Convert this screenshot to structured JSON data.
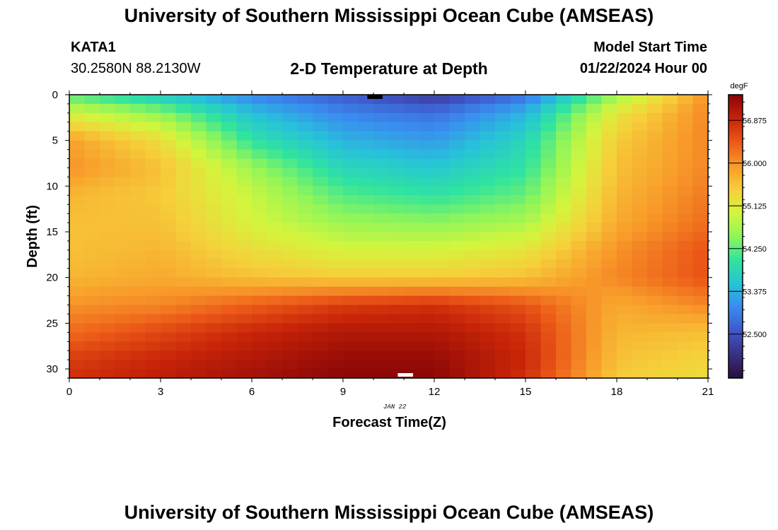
{
  "header": {
    "title": "University of Southern Mississippi Ocean Cube (AMSEAS)",
    "station_id": "KATA1",
    "coords": "30.2580N  88.2130W",
    "model_start_label": "Model Start Time",
    "model_start_value": "01/22/2024 Hour 00",
    "bottom_title": "University of Southern Mississippi Ocean Cube (AMSEAS)"
  },
  "chart_data": {
    "type": "heatmap",
    "title": "2-D Temperature at Depth",
    "xlabel": "Forecast Time(Z)",
    "ylabel": "Depth (ft)",
    "date_label": "JAN 22",
    "xlim": [
      0,
      21
    ],
    "ylim": [
      31,
      0
    ],
    "x_ticks": [
      "0",
      "3",
      "6",
      "9",
      "12",
      "15",
      "18",
      "21"
    ],
    "y_ticks": [
      "0",
      "5",
      "10",
      "15",
      "20",
      "25",
      "30"
    ],
    "colorbar": {
      "unit": "degF",
      "min": 51.6,
      "max": 57.4,
      "tick_labels": [
        "56.875",
        "56.000",
        "55.125",
        "54.250",
        "53.375",
        "52.500"
      ],
      "tick_values": [
        56.875,
        56.0,
        55.125,
        54.25,
        53.375,
        52.5
      ],
      "colormap": [
        "#2a0e3c",
        "#3b2f7e",
        "#3f57c9",
        "#3a8af0",
        "#27c3d9",
        "#2fe3a0",
        "#8ef55a",
        "#d4f53c",
        "#f6cf3a",
        "#f89a2a",
        "#ec5a18",
        "#c72408",
        "#8a0606"
      ]
    },
    "description_grid": {
      "x_hours": [
        0,
        3,
        6,
        9,
        12,
        15,
        18,
        21
      ],
      "depth_ft": [
        0,
        2,
        5,
        8,
        11,
        14,
        17,
        20,
        23,
        26,
        29,
        31
      ],
      "temperature_degF": [
        [
          54.2,
          53.6,
          53.0,
          52.6,
          52.2,
          52.8,
          54.6,
          56.0
        ],
        [
          55.0,
          54.5,
          53.5,
          53.0,
          52.8,
          53.4,
          55.2,
          56.1
        ],
        [
          55.9,
          55.3,
          54.0,
          53.4,
          53.2,
          53.8,
          55.5,
          56.1
        ],
        [
          56.0,
          55.6,
          54.6,
          53.8,
          53.6,
          54.0,
          55.6,
          56.1
        ],
        [
          55.7,
          55.5,
          54.9,
          54.2,
          54.0,
          54.3,
          55.7,
          56.2
        ],
        [
          55.6,
          55.6,
          55.0,
          54.6,
          54.5,
          54.7,
          55.8,
          56.3
        ],
        [
          55.6,
          55.7,
          55.3,
          55.0,
          55.0,
          55.2,
          56.0,
          56.5
        ],
        [
          55.7,
          55.8,
          55.6,
          55.5,
          55.5,
          55.6,
          56.1,
          56.5
        ],
        [
          56.0,
          56.1,
          56.4,
          56.7,
          56.8,
          56.5,
          55.8,
          56.1
        ],
        [
          56.3,
          56.6,
          56.9,
          57.1,
          57.1,
          56.8,
          55.7,
          55.6
        ],
        [
          56.7,
          56.9,
          57.1,
          57.3,
          57.3,
          56.9,
          55.6,
          55.4
        ],
        [
          56.8,
          57.0,
          57.2,
          57.4,
          57.4,
          56.8,
          55.5,
          55.3
        ]
      ]
    }
  }
}
